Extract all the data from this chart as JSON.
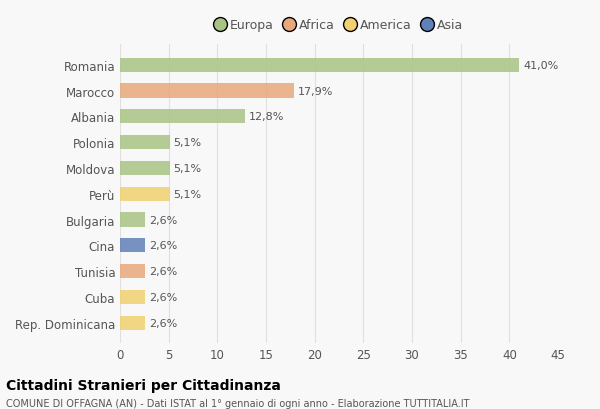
{
  "categories": [
    "Romania",
    "Marocco",
    "Albania",
    "Polonia",
    "Moldova",
    "Perù",
    "Bulgaria",
    "Cina",
    "Tunisia",
    "Cuba",
    "Rep. Dominicana"
  ],
  "values": [
    41.0,
    17.9,
    12.8,
    5.1,
    5.1,
    5.1,
    2.6,
    2.6,
    2.6,
    2.6,
    2.6
  ],
  "labels": [
    "41,0%",
    "17,9%",
    "12,8%",
    "5,1%",
    "5,1%",
    "5,1%",
    "2,6%",
    "2,6%",
    "2,6%",
    "2,6%",
    "2,6%"
  ],
  "colors": [
    "#a8c484",
    "#e8a87c",
    "#a8c484",
    "#a8c484",
    "#a8c484",
    "#f0d070",
    "#a8c484",
    "#6080b8",
    "#e8a87c",
    "#f0d070",
    "#f0d070"
  ],
  "legend_labels": [
    "Europa",
    "Africa",
    "America",
    "Asia"
  ],
  "legend_colors": [
    "#a8c484",
    "#e8a87c",
    "#f0d070",
    "#6080b8"
  ],
  "xlim": [
    0,
    45
  ],
  "xticks": [
    0,
    5,
    10,
    15,
    20,
    25,
    30,
    35,
    40,
    45
  ],
  "title": "Cittadini Stranieri per Cittadinanza",
  "subtitle": "COMUNE DI OFFAGNA (AN) - Dati ISTAT al 1° gennaio di ogni anno - Elaborazione TUTTITALIA.IT",
  "background_color": "#f8f8f8",
  "grid_color": "#e0e0e0",
  "bar_height": 0.55
}
